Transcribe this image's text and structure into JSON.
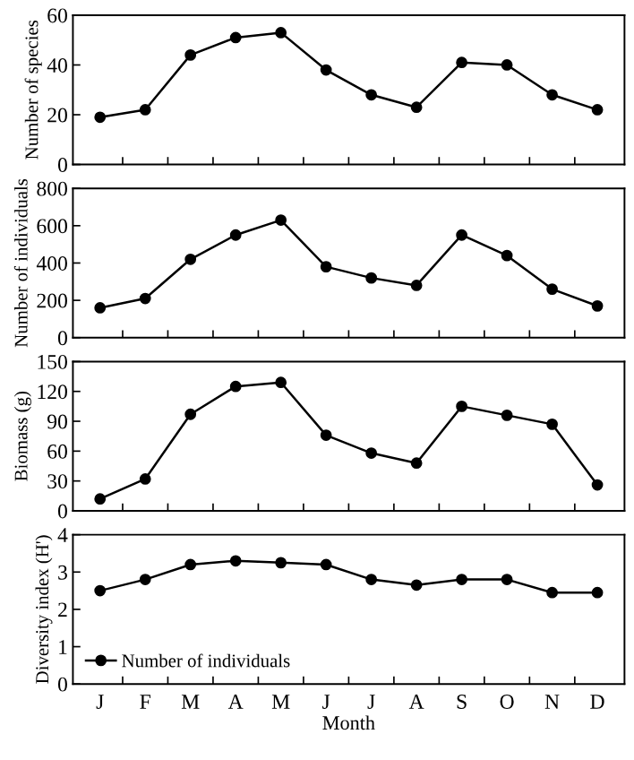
{
  "chart_data": [
    {
      "type": "line",
      "ylabel": "Number of species",
      "categories": [
        null,
        null,
        null,
        null,
        null,
        null,
        null,
        null,
        null,
        null,
        null,
        null
      ],
      "tick_labels": "y",
      "ylim": [
        0,
        60
      ],
      "yticks": [
        0,
        20,
        40,
        60
      ],
      "marker": "circle",
      "line_style": "solid",
      "series": [
        {
          "color": "#000000",
          "values": [
            19,
            22,
            44,
            51,
            53,
            38,
            28,
            23,
            41,
            40,
            28,
            22
          ]
        }
      ]
    },
    {
      "type": "line",
      "ylabel": "Number of individuals",
      "categories": [
        null,
        null,
        null,
        null,
        null,
        null,
        null,
        null,
        null,
        null,
        null,
        null
      ],
      "tick_labels": "y",
      "ylim": [
        0,
        800
      ],
      "yticks": [
        0,
        200,
        400,
        600,
        800
      ],
      "marker": "circle",
      "line_style": "solid",
      "series": [
        {
          "color": "#000000",
          "values": [
            160,
            210,
            420,
            550,
            630,
            380,
            320,
            280,
            550,
            440,
            260,
            170
          ]
        }
      ]
    },
    {
      "type": "line",
      "ylabel": "Biomass (g)",
      "categories": [
        null,
        null,
        null,
        null,
        null,
        null,
        null,
        null,
        null,
        null,
        null,
        null
      ],
      "tick_labels": "y",
      "ylim": [
        0,
        150
      ],
      "yticks": [
        0,
        30,
        60,
        90,
        120,
        150
      ],
      "marker": "circle",
      "line_style": "solid",
      "series": [
        {
          "color": "#000000",
          "values": [
            12,
            32,
            97,
            125,
            129,
            76,
            58,
            48,
            105,
            96,
            87,
            26
          ]
        }
      ]
    },
    {
      "type": "line",
      "ylabel": "Diversity index (H')",
      "xlabel": "Month",
      "categories": [
        "J",
        "F",
        "M",
        "A",
        "M",
        "J",
        "J",
        "A",
        "S",
        "O",
        "N",
        "D"
      ],
      "ylim": [
        0,
        4
      ],
      "yticks": [
        0,
        1,
        2,
        3,
        4
      ],
      "marker": "circle",
      "line_style": "solid",
      "legend": "bottom left",
      "series": [
        {
          "name": "Number of individuals",
          "color": "#000000",
          "values": [
            2.5,
            2.8,
            3.2,
            3.3,
            3.25,
            3.2,
            2.8,
            2.65,
            2.8,
            2.8,
            2.45,
            2.45
          ]
        }
      ]
    }
  ]
}
